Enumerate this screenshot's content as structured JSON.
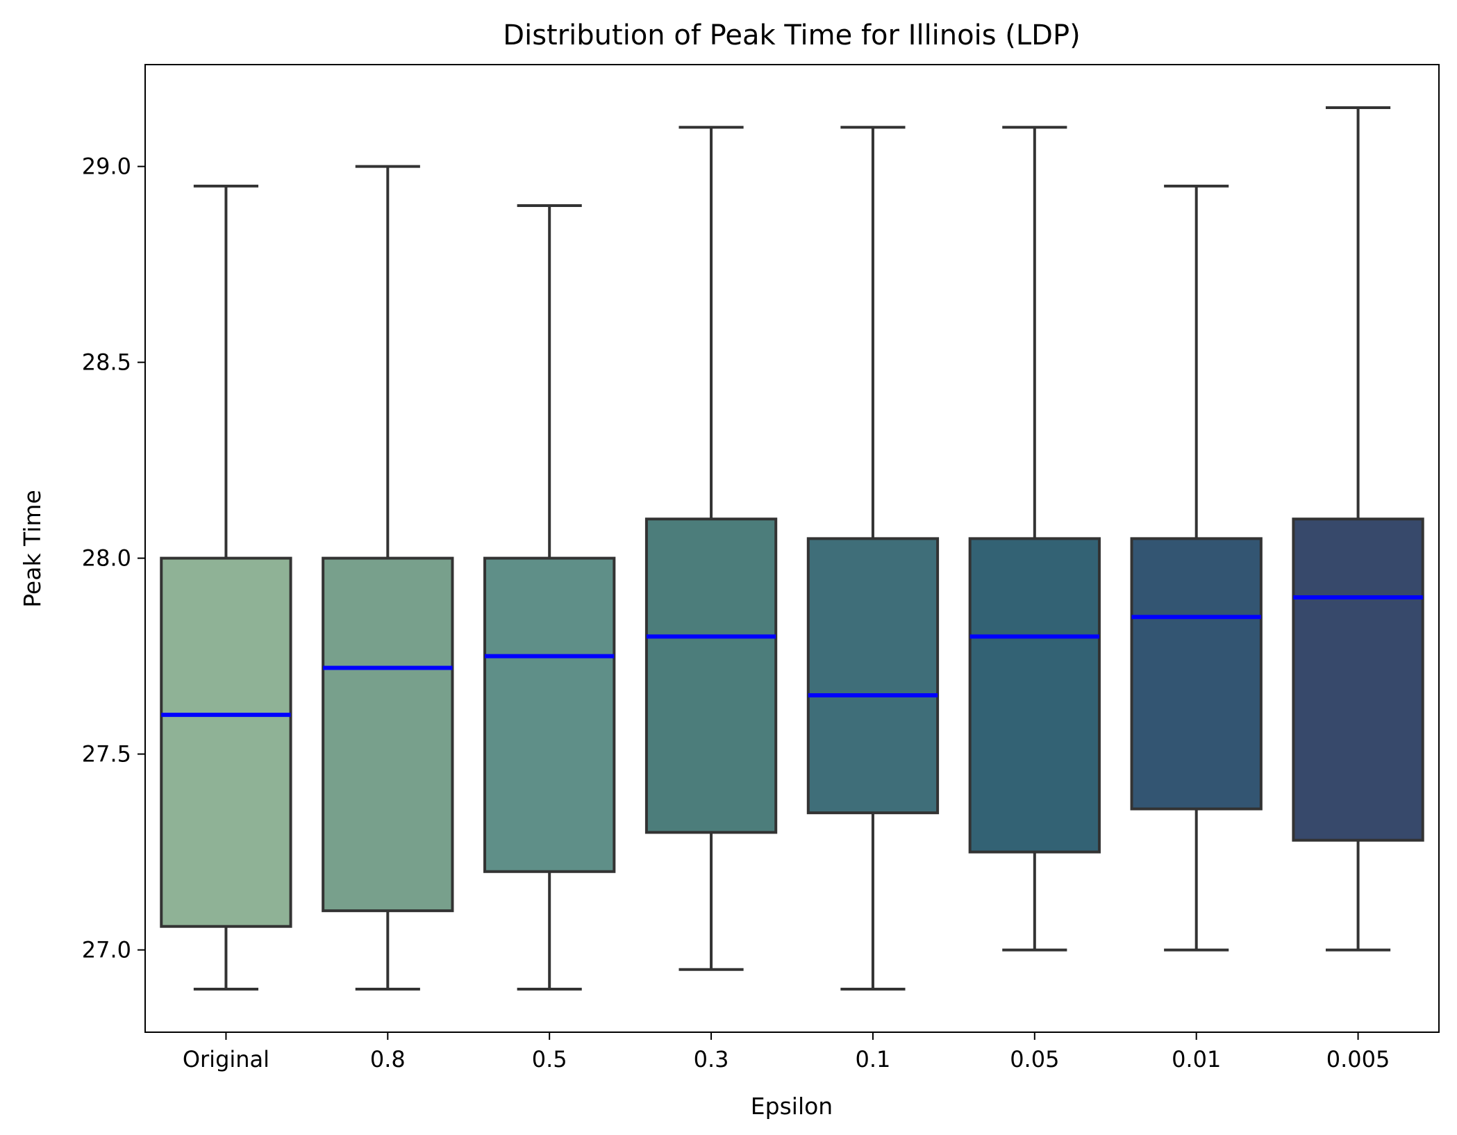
{
  "chart_data": {
    "type": "box",
    "title": "Distribution of Peak Time for Illinois (LDP)",
    "xlabel": "Epsilon",
    "ylabel": "Peak Time",
    "categories": [
      "Original",
      "0.8",
      "0.5",
      "0.3",
      "0.1",
      "0.05",
      "0.01",
      "0.005"
    ],
    "ylim": [
      26.79,
      29.26
    ],
    "yticks": [
      27.0,
      27.5,
      28.0,
      28.5,
      29.0
    ],
    "ytick_labels": [
      "27.0",
      "27.5",
      "28.0",
      "28.5",
      "29.0"
    ],
    "grid": false,
    "boxes": [
      {
        "category": "Original",
        "whislo": 26.9,
        "q1": 27.06,
        "median": 27.6,
        "q3": 28.0,
        "whishi": 28.95
      },
      {
        "category": "0.8",
        "whislo": 26.9,
        "q1": 27.1,
        "median": 27.72,
        "q3": 28.0,
        "whishi": 29.0
      },
      {
        "category": "0.5",
        "whislo": 26.9,
        "q1": 27.2,
        "median": 27.75,
        "q3": 28.0,
        "whishi": 28.9
      },
      {
        "category": "0.3",
        "whislo": 26.95,
        "q1": 27.3,
        "median": 27.8,
        "q3": 28.1,
        "whishi": 29.1
      },
      {
        "category": "0.1",
        "whislo": 26.9,
        "q1": 27.35,
        "median": 27.65,
        "q3": 28.05,
        "whishi": 29.1
      },
      {
        "category": "0.05",
        "whislo": 27.0,
        "q1": 27.25,
        "median": 27.8,
        "q3": 28.05,
        "whishi": 29.1
      },
      {
        "category": "0.01",
        "whislo": 27.0,
        "q1": 27.36,
        "median": 27.85,
        "q3": 28.05,
        "whishi": 28.95
      },
      {
        "category": "0.005",
        "whislo": 27.0,
        "q1": 27.28,
        "median": 27.9,
        "q3": 28.1,
        "whishi": 29.15
      }
    ],
    "colors": {
      "boxes": [
        "#8fb296",
        "#78a08c",
        "#5f8f88",
        "#4c7d7b",
        "#3f6e79",
        "#336274",
        "#335572",
        "#37496b"
      ],
      "median": "#0000ff",
      "outline": "#333333",
      "axes": "#000000",
      "background": "#ffffff"
    }
  }
}
